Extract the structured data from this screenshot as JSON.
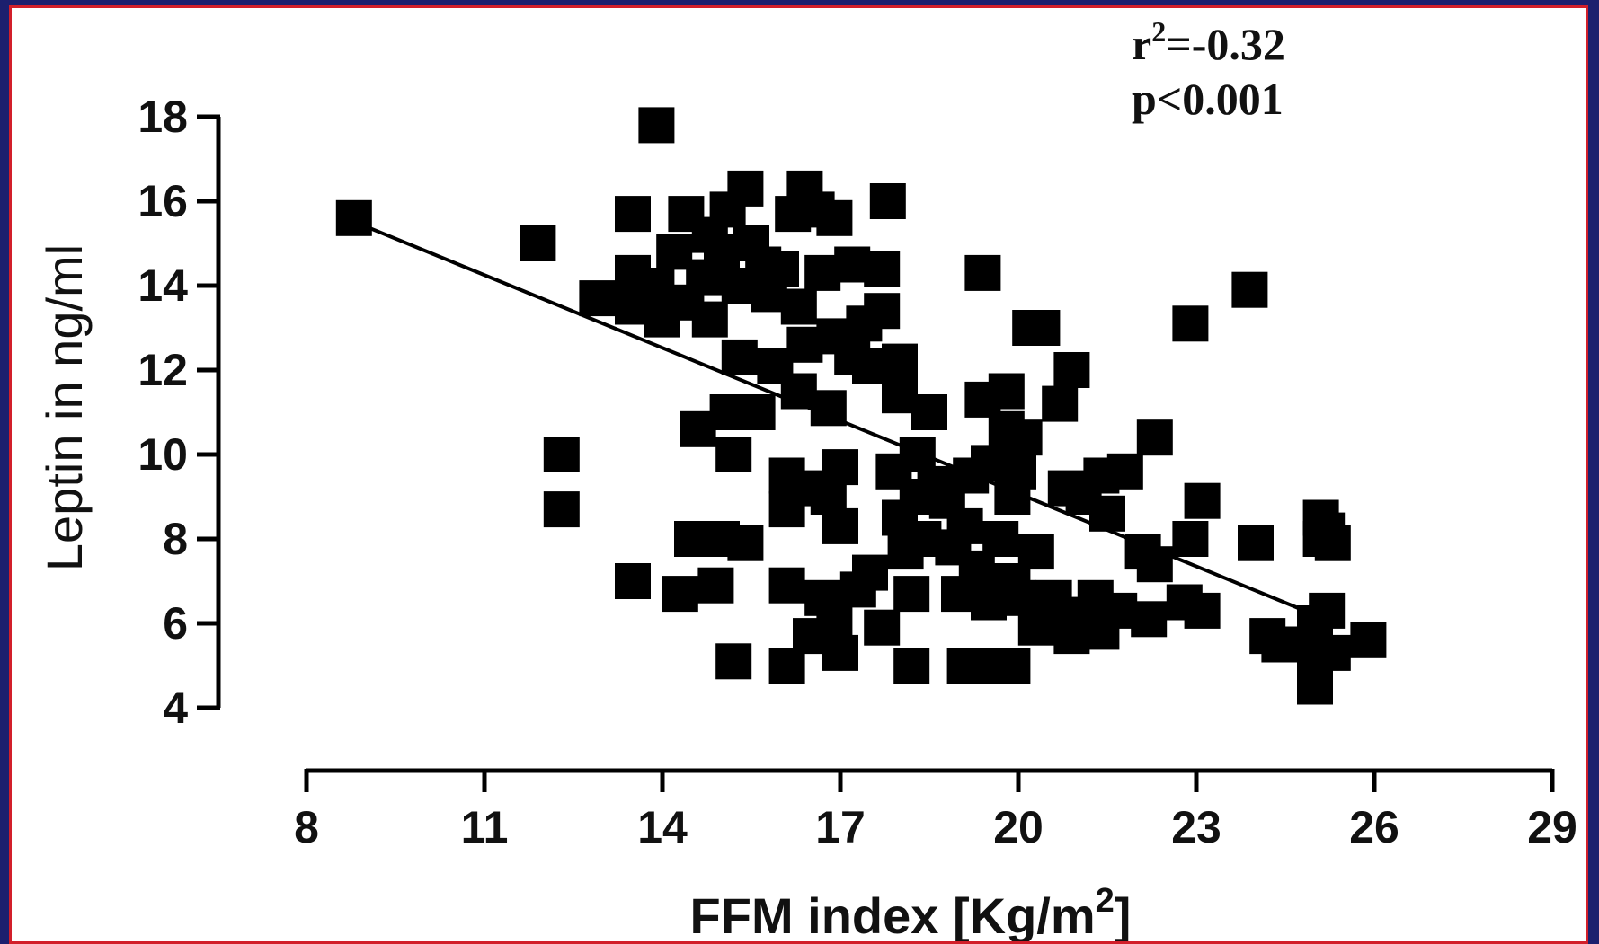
{
  "chart_data": {
    "type": "scatter",
    "title": "",
    "xlabel": "FFM index [Kg/m²]",
    "ylabel": "Leptin in ng/ml",
    "xlim": [
      8,
      29
    ],
    "ylim": [
      4,
      18
    ],
    "xticks": [
      "8",
      "11",
      "14",
      "17",
      "20",
      "23",
      "26",
      "29"
    ],
    "yticks": [
      "4",
      "6",
      "8",
      "10",
      "12",
      "14",
      "16",
      "18"
    ],
    "grid": false,
    "legend": "none",
    "annotations": {
      "r_squared": "r²=-0.32",
      "p_value": "p<0.001"
    },
    "marker": "square",
    "marker_color": "#000000",
    "trendline": {
      "x": [
        9.0,
        25.0
      ],
      "y": [
        15.4,
        6.2
      ]
    },
    "series": [
      {
        "points": [
          [
            8.8,
            15.6
          ],
          [
            11.9,
            15.0
          ],
          [
            12.3,
            10.0
          ],
          [
            12.3,
            8.7
          ],
          [
            12.9,
            13.7
          ],
          [
            13.5,
            15.7
          ],
          [
            13.5,
            14.3
          ],
          [
            13.5,
            13.5
          ],
          [
            13.5,
            7.0
          ],
          [
            13.9,
            17.8
          ],
          [
            13.9,
            14.0
          ],
          [
            14.0,
            13.2
          ],
          [
            14.2,
            14.8
          ],
          [
            14.3,
            6.7
          ],
          [
            14.4,
            15.7
          ],
          [
            14.4,
            13.6
          ],
          [
            14.5,
            8.0
          ],
          [
            14.6,
            10.6
          ],
          [
            14.7,
            14.2
          ],
          [
            14.8,
            15.2
          ],
          [
            14.8,
            13.2
          ],
          [
            14.9,
            6.9
          ],
          [
            15.0,
            8.0
          ],
          [
            15.0,
            14.8
          ],
          [
            15.1,
            15.8
          ],
          [
            15.1,
            11.0
          ],
          [
            15.2,
            10.0
          ],
          [
            15.2,
            5.1
          ],
          [
            15.3,
            14.0
          ],
          [
            15.3,
            12.3
          ],
          [
            15.4,
            16.3
          ],
          [
            15.4,
            7.9
          ],
          [
            15.5,
            15.0
          ],
          [
            15.6,
            11.0
          ],
          [
            15.7,
            14.5
          ],
          [
            15.8,
            13.8
          ],
          [
            15.9,
            12.1
          ],
          [
            16.0,
            14.4
          ],
          [
            16.1,
            9.5
          ],
          [
            16.1,
            8.7
          ],
          [
            16.1,
            6.9
          ],
          [
            16.1,
            5.0
          ],
          [
            16.2,
            15.7
          ],
          [
            16.3,
            13.5
          ],
          [
            16.3,
            11.5
          ],
          [
            16.4,
            16.3
          ],
          [
            16.4,
            12.6
          ],
          [
            16.5,
            9.2
          ],
          [
            16.5,
            5.7
          ],
          [
            16.6,
            15.8
          ],
          [
            16.7,
            14.3
          ],
          [
            16.7,
            6.6
          ],
          [
            16.8,
            11.1
          ],
          [
            16.8,
            9.0
          ],
          [
            16.9,
            15.6
          ],
          [
            16.9,
            12.8
          ],
          [
            16.9,
            6.0
          ],
          [
            17.0,
            9.7
          ],
          [
            17.0,
            8.3
          ],
          [
            17.0,
            5.3
          ],
          [
            17.2,
            14.5
          ],
          [
            17.2,
            12.3
          ],
          [
            17.3,
            6.8
          ],
          [
            17.4,
            13.1
          ],
          [
            17.5,
            12.1
          ],
          [
            17.5,
            7.2
          ],
          [
            17.7,
            14.4
          ],
          [
            17.7,
            13.4
          ],
          [
            17.7,
            5.9
          ],
          [
            17.8,
            16.0
          ],
          [
            17.9,
            9.6
          ],
          [
            18.0,
            11.4
          ],
          [
            18.0,
            12.2
          ],
          [
            18.0,
            8.5
          ],
          [
            18.1,
            7.7
          ],
          [
            18.2,
            6.7
          ],
          [
            18.2,
            5.0
          ],
          [
            18.3,
            10.0
          ],
          [
            18.3,
            9.0
          ],
          [
            18.4,
            8.0
          ],
          [
            18.5,
            11.0
          ],
          [
            18.6,
            9.3
          ],
          [
            18.8,
            8.9
          ],
          [
            18.9,
            7.8
          ],
          [
            19.0,
            6.7
          ],
          [
            19.1,
            5.0
          ],
          [
            19.1,
            8.3
          ],
          [
            19.2,
            9.5
          ],
          [
            19.3,
            7.3
          ],
          [
            19.4,
            11.3
          ],
          [
            19.4,
            14.3
          ],
          [
            19.5,
            9.8
          ],
          [
            19.5,
            6.5
          ],
          [
            19.6,
            5.0
          ],
          [
            19.7,
            8.0
          ],
          [
            19.8,
            10.6
          ],
          [
            19.8,
            11.5
          ],
          [
            19.9,
            9.0
          ],
          [
            19.9,
            7.0
          ],
          [
            19.9,
            5.0
          ],
          [
            20.0,
            9.6
          ],
          [
            20.0,
            6.6
          ],
          [
            20.1,
            10.4
          ],
          [
            20.2,
            13.0
          ],
          [
            20.3,
            7.7
          ],
          [
            20.3,
            5.9
          ],
          [
            20.4,
            13.0
          ],
          [
            20.6,
            6.6
          ],
          [
            20.7,
            11.2
          ],
          [
            20.7,
            6.0
          ],
          [
            20.8,
            9.2
          ],
          [
            20.9,
            12.0
          ],
          [
            20.9,
            5.7
          ],
          [
            21.1,
            9.0
          ],
          [
            21.1,
            6.2
          ],
          [
            21.3,
            6.6
          ],
          [
            21.4,
            9.5
          ],
          [
            21.4,
            5.8
          ],
          [
            21.5,
            8.6
          ],
          [
            21.7,
            6.3
          ],
          [
            21.8,
            9.6
          ],
          [
            22.1,
            7.7
          ],
          [
            22.2,
            6.1
          ],
          [
            22.3,
            10.4
          ],
          [
            22.3,
            7.4
          ],
          [
            22.8,
            6.5
          ],
          [
            22.9,
            13.1
          ],
          [
            22.9,
            8.0
          ],
          [
            23.1,
            8.9
          ],
          [
            23.1,
            6.3
          ],
          [
            23.9,
            13.9
          ],
          [
            24.0,
            7.9
          ],
          [
            24.2,
            5.7
          ],
          [
            24.4,
            5.5
          ],
          [
            25.0,
            6.0
          ],
          [
            25.0,
            5.8
          ],
          [
            25.0,
            5.2
          ],
          [
            25.0,
            4.5
          ],
          [
            25.1,
            8.5
          ],
          [
            25.1,
            8.0
          ],
          [
            25.2,
            6.3
          ],
          [
            25.2,
            8.2
          ],
          [
            25.3,
            5.3
          ],
          [
            25.3,
            7.9
          ],
          [
            25.9,
            5.6
          ]
        ]
      }
    ]
  }
}
